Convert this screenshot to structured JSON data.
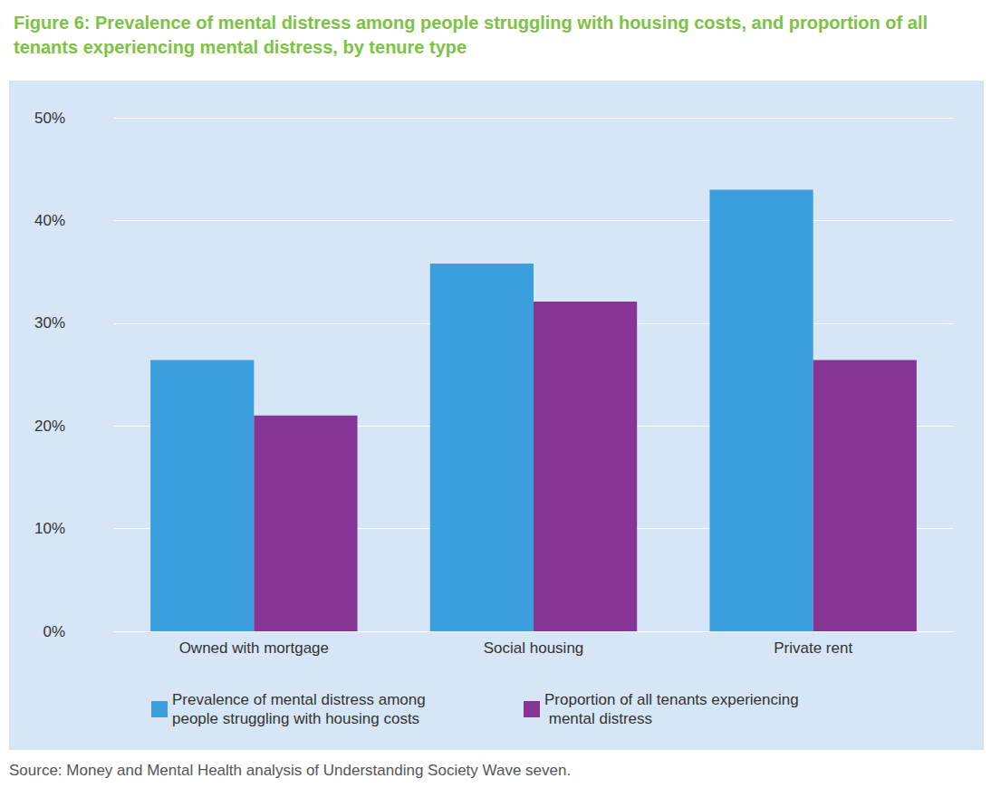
{
  "chart_data": {
    "type": "bar",
    "title": "Figure 6: Prevalence of mental distress among people struggling with housing costs, and proportion of all tenants experiencing mental distress, by tenure type",
    "categories": [
      "Owned with mortgage",
      "Social housing",
      "Private rent"
    ],
    "series": [
      {
        "name": "Prevalence of mental distress among people struggling with housing costs",
        "color": "#3a9fdc",
        "values": [
          26.4,
          35.8,
          43.0
        ]
      },
      {
        "name": "Proportion of all tenants experiencing mental distress",
        "color": "#853593",
        "values": [
          21.0,
          32.1,
          26.4
        ]
      }
    ],
    "ylim": [
      0,
      50
    ],
    "yticks": [
      {
        "value": 0,
        "label": "0%"
      },
      {
        "value": 10,
        "label": "10%"
      },
      {
        "value": 20,
        "label": "20%"
      },
      {
        "value": 30,
        "label": "30%"
      },
      {
        "value": 40,
        "label": "40%"
      },
      {
        "value": 50,
        "label": "50%"
      }
    ],
    "grid": true,
    "legend": "bottom",
    "source": "Source: Money and Mental Health analysis of Understanding Society Wave seven."
  }
}
